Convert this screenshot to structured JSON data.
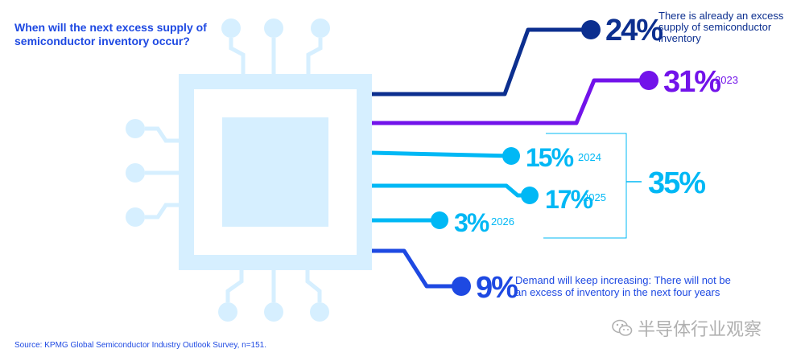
{
  "title": "When will the next excess supply of semiconductor inventory occur?",
  "source": "Source: KPMG Global Semiconductor Industry Outlook Survey, n=151.",
  "watermark": "半导体行业观察",
  "colors": {
    "chip": "#d6efff",
    "dark_navy": "#0c2f8f",
    "purple": "#7213ea",
    "light_blue": "#00b8f5",
    "blue": "#1e49e2"
  },
  "chart_data": {
    "type": "bar",
    "categories": [
      "There is already an excess supply of semiconductor inventory",
      "2023",
      "2024",
      "2025",
      "2026",
      "Demand will keep increasing: There will not be an excess of inventory in the next four years"
    ],
    "values": [
      24,
      31,
      15,
      17,
      3,
      9
    ],
    "value_labels": [
      "24%",
      "31%",
      "15%",
      "17%",
      "3%",
      "9%"
    ],
    "label_lines": [
      [
        "There is already an excess",
        "supply of semiconductor",
        "inventory"
      ],
      [
        "2023"
      ],
      [
        "2024"
      ],
      [
        "2025"
      ],
      [
        "2026"
      ],
      [
        "Demand will keep increasing: There will not be",
        "an excess of inventory in the next four years"
      ]
    ],
    "group": {
      "members": [
        "2024",
        "2025",
        "2026"
      ],
      "total": 35,
      "total_label": "35%"
    },
    "title": "When will the next excess supply of semiconductor inventory occur?"
  }
}
